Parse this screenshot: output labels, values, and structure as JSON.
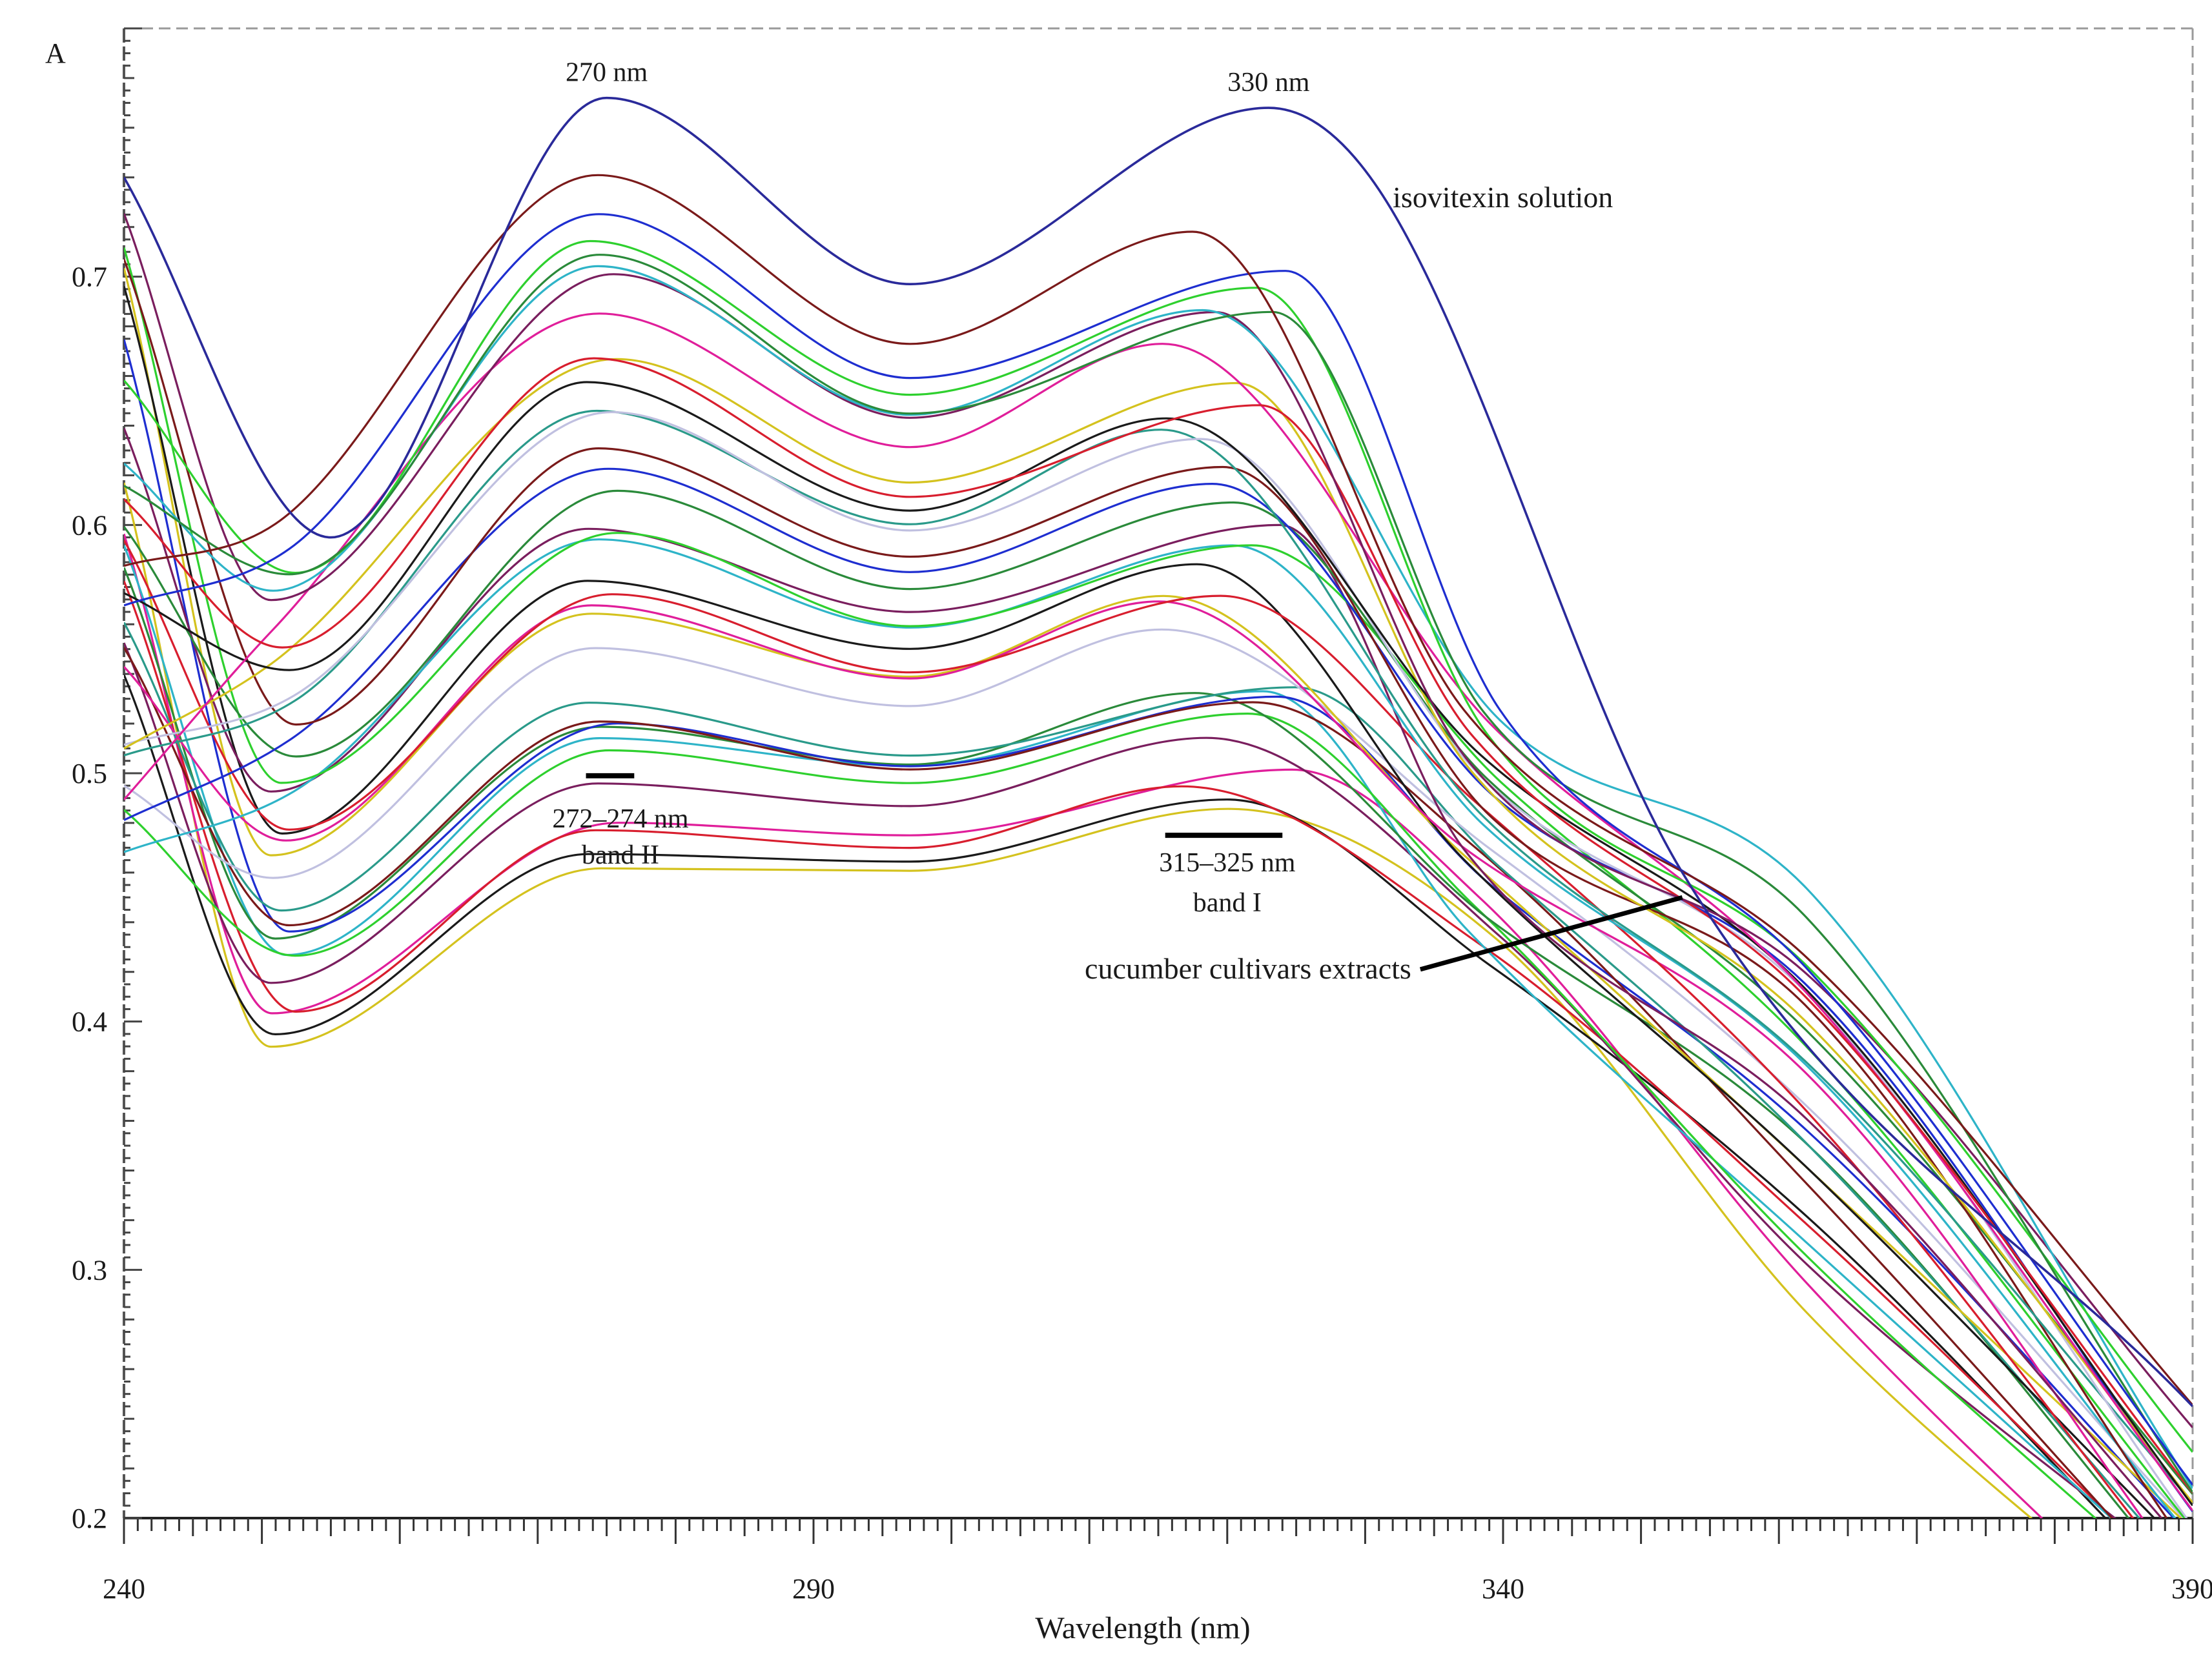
{
  "chart_data": {
    "type": "line",
    "title": "",
    "xlabel": "Wavelength (nm)",
    "ylabel": "A",
    "xlim": [
      240,
      390
    ],
    "ylim": [
      0.2,
      0.8
    ],
    "xticks": [
      240,
      290,
      340,
      390
    ],
    "yticks": [
      0.2,
      0.3,
      0.4,
      0.5,
      0.6,
      0.7
    ],
    "xtick_labels": [
      "240",
      "290",
      "340",
      "390"
    ],
    "ytick_labels": [
      "0.2",
      "0.3",
      "0.4",
      "0.5",
      "0.6",
      "0.7"
    ],
    "grid": false,
    "colors": [
      "#d4c21e",
      "#1a1a1a",
      "#e01e9a",
      "#d81e2e",
      "#7a1e5e",
      "#2eb4c8",
      "#2ed02e",
      "#2a8a3a",
      "#1e2ed0",
      "#7a1a1a",
      "#2a9a8a",
      "#c0c0e0"
    ],
    "isovitexin_color": "#2a2a9a",
    "series": [
      {
        "name": "isovitexin solution",
        "x": [
          240,
          255,
          275,
          297,
          323,
          331,
          353,
          390
        ],
        "y": [
          0.74,
          0.595,
          0.772,
          0.697,
          0.768,
          0.735,
          0.46,
          0.245
        ]
      }
    ],
    "extract_families": {
      "min_a": [
        0.605,
        0.595
      ],
      "peak2": [
        0.462,
        0.73
      ],
      "trough": [
        0.461,
        0.662
      ],
      "peak1": [
        0.486,
        0.705
      ],
      "long_wl": [
        0.352,
        0.52
      ],
      "end_390": [
        0.155,
        0.23
      ],
      "peak2_wl": [
        273.5,
        276
      ],
      "peak1_wl": [
        315,
        325
      ]
    },
    "annotations": {
      "peak_270": "270 nm",
      "peak_330": "330 nm",
      "isovitexin_label": "isovitexin solution",
      "band2_range": "272–274 nm",
      "band2_name": "band II",
      "band1_range": "315–325 nm",
      "band1_name": "band I",
      "extracts_label": "cucumber cultivars extracts"
    },
    "band_markers": {
      "band2_x": [
        273.5,
        277
      ],
      "band2_y": 0.499,
      "band1_x": [
        315.5,
        324
      ],
      "band1_y": 0.475
    },
    "extracts_leader": {
      "x": [
        334,
        353
      ],
      "y": 0.421,
      "y2": 0.45
    }
  }
}
